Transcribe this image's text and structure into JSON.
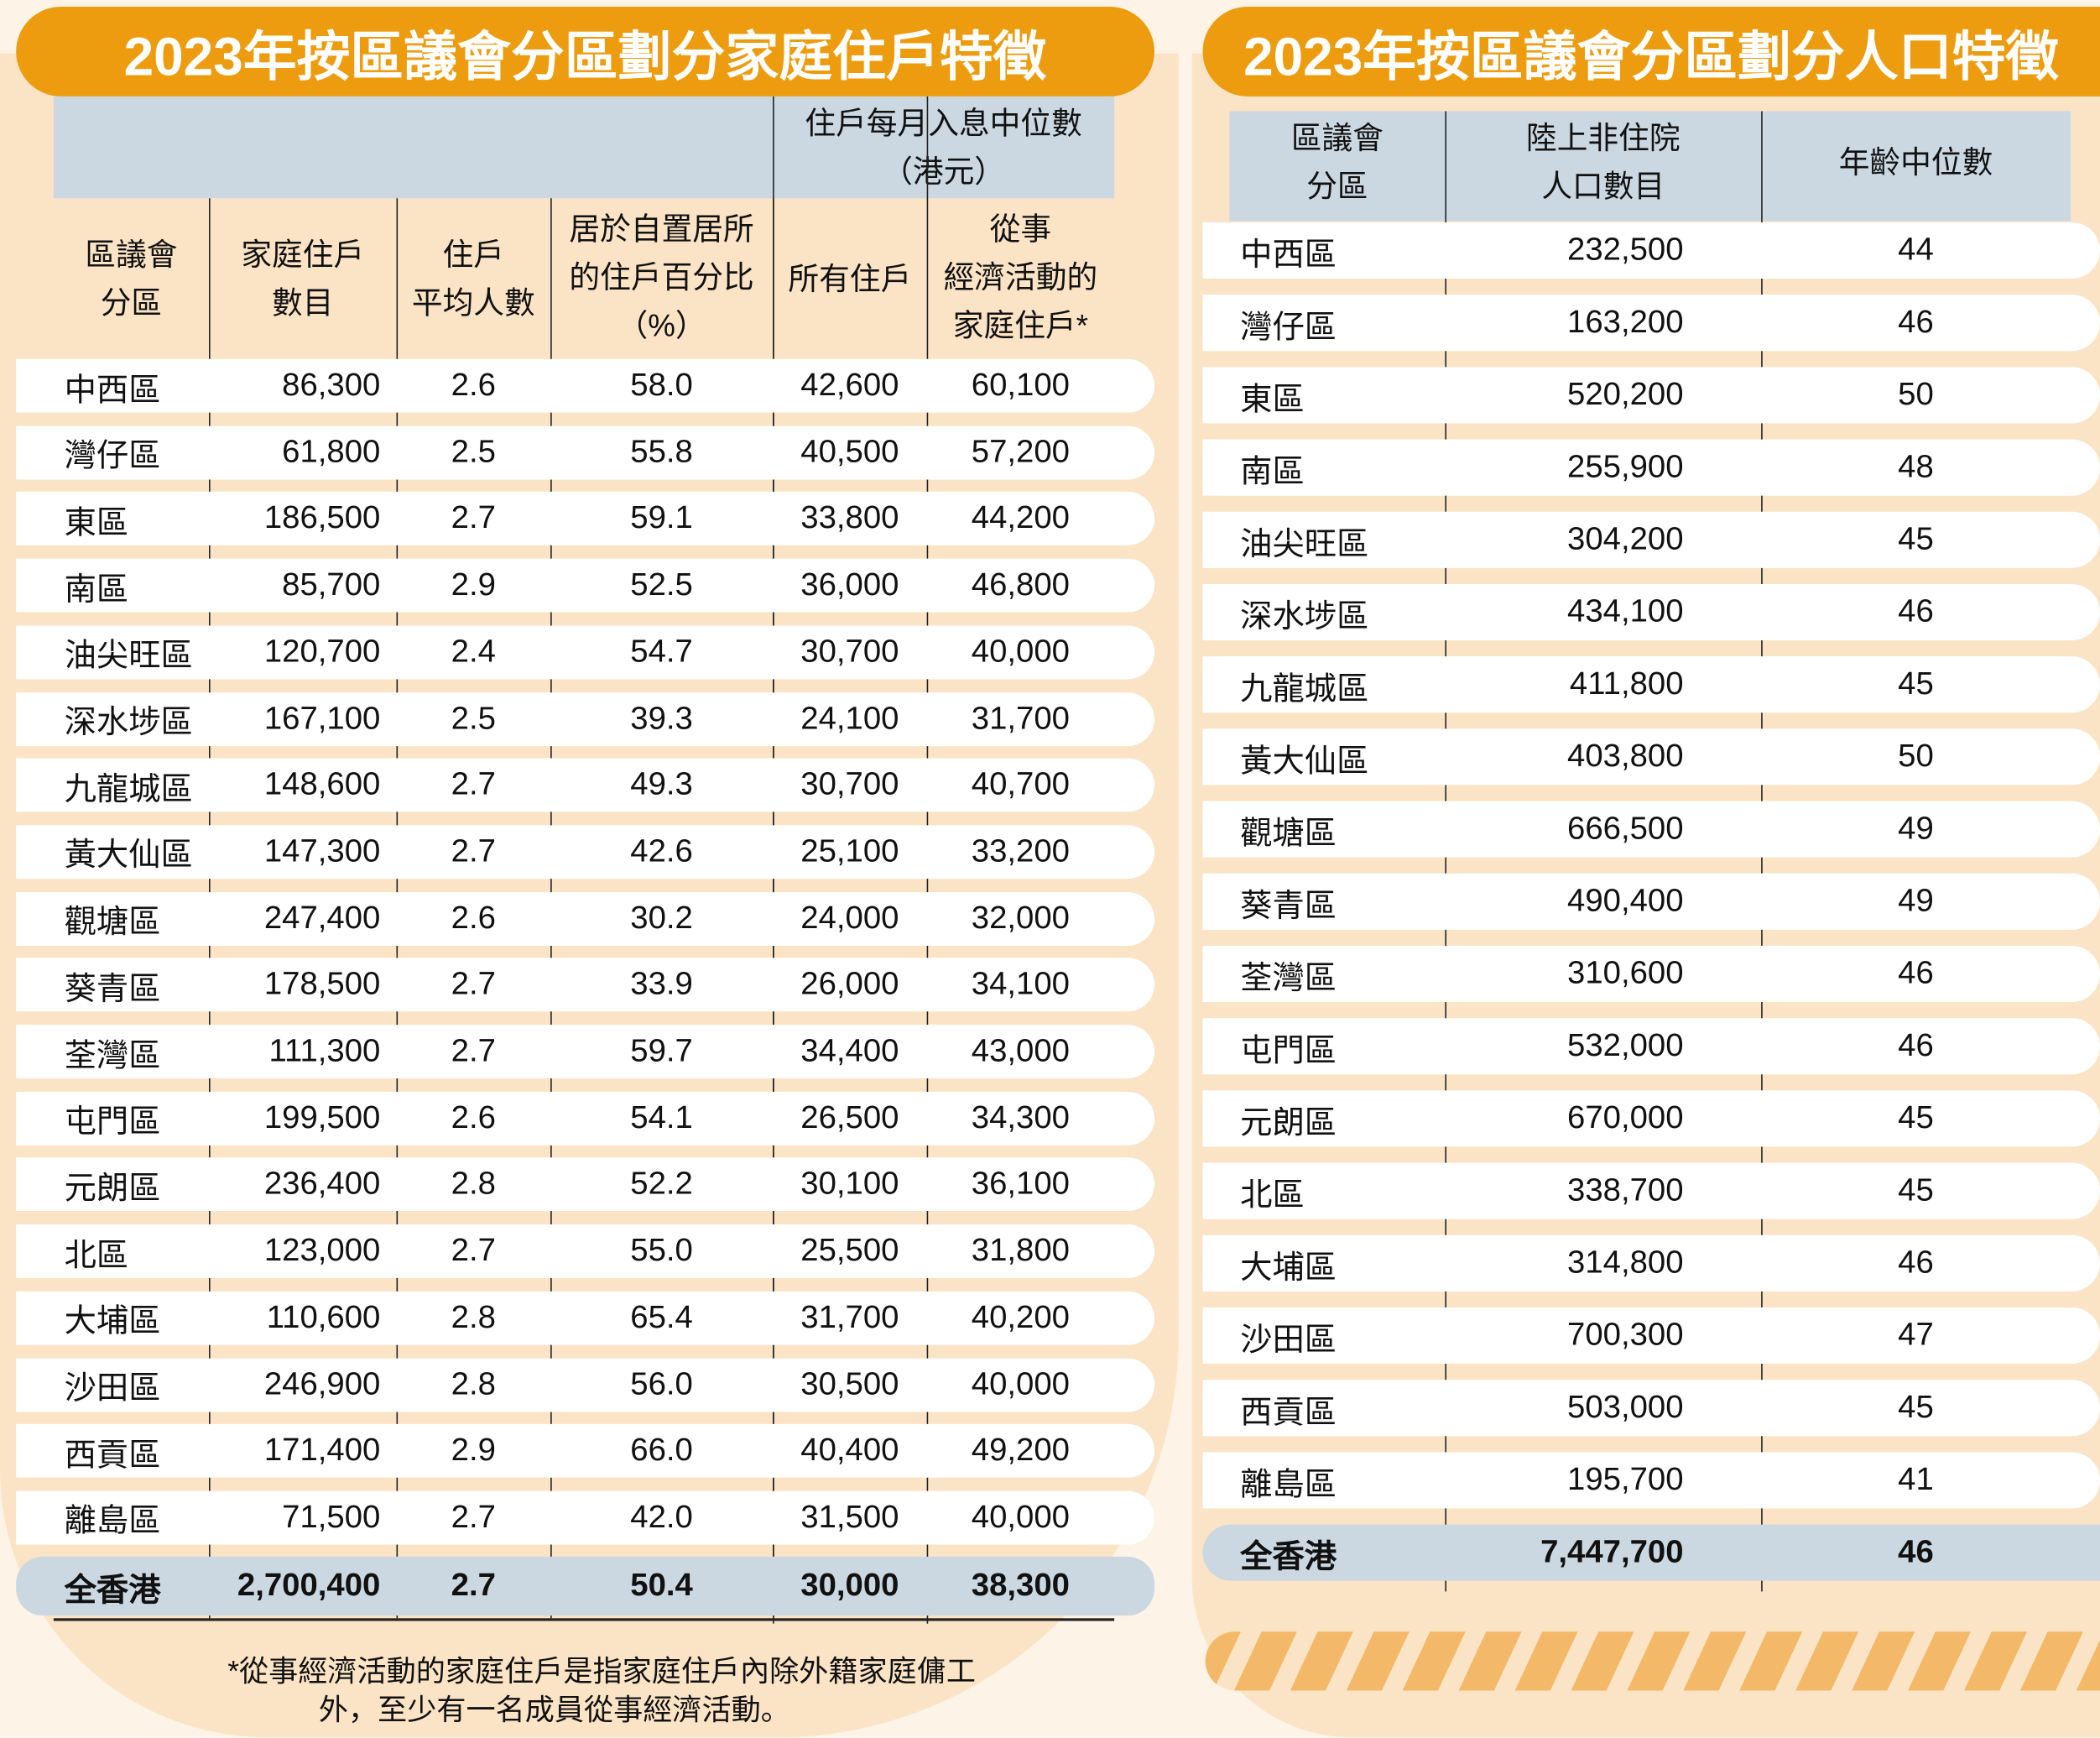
{
  "household": {
    "title": "2023年按區議會分區劃分家庭住戶特徵",
    "group_header": "住戶每月入息中位數",
    "group_unit": "（港元）",
    "columns": [
      "區議會\n分區",
      "家庭住戶\n數目",
      "住戶\n平均人數",
      "居於自置居所\n的住戶百分比\n（%）",
      "所有住戶",
      "從事\n經濟活動的\n家庭住戶*"
    ],
    "rows": [
      [
        "中西區",
        "86,300",
        "2.6",
        "58.0",
        "42,600",
        "60,100"
      ],
      [
        "灣仔區",
        "61,800",
        "2.5",
        "55.8",
        "40,500",
        "57,200"
      ],
      [
        "東區",
        "186,500",
        "2.7",
        "59.1",
        "33,800",
        "44,200"
      ],
      [
        "南區",
        "85,700",
        "2.9",
        "52.5",
        "36,000",
        "46,800"
      ],
      [
        "油尖旺區",
        "120,700",
        "2.4",
        "54.7",
        "30,700",
        "40,000"
      ],
      [
        "深水埗區",
        "167,100",
        "2.5",
        "39.3",
        "24,100",
        "31,700"
      ],
      [
        "九龍城區",
        "148,600",
        "2.7",
        "49.3",
        "30,700",
        "40,700"
      ],
      [
        "黃大仙區",
        "147,300",
        "2.7",
        "42.6",
        "25,100",
        "33,200"
      ],
      [
        "觀塘區",
        "247,400",
        "2.6",
        "30.2",
        "24,000",
        "32,000"
      ],
      [
        "葵青區",
        "178,500",
        "2.7",
        "33.9",
        "26,000",
        "34,100"
      ],
      [
        "荃灣區",
        "111,300",
        "2.7",
        "59.7",
        "34,400",
        "43,000"
      ],
      [
        "屯門區",
        "199,500",
        "2.6",
        "54.1",
        "26,500",
        "34,300"
      ],
      [
        "元朗區",
        "236,400",
        "2.8",
        "52.2",
        "30,100",
        "36,100"
      ],
      [
        "北區",
        "123,000",
        "2.7",
        "55.0",
        "25,500",
        "31,800"
      ],
      [
        "大埔區",
        "110,600",
        "2.8",
        "65.4",
        "31,700",
        "40,200"
      ],
      [
        "沙田區",
        "246,900",
        "2.8",
        "56.0",
        "30,500",
        "40,000"
      ],
      [
        "西貢區",
        "171,400",
        "2.9",
        "66.0",
        "40,400",
        "49,200"
      ],
      [
        "離島區",
        "71,500",
        "2.7",
        "42.0",
        "31,500",
        "40,000"
      ]
    ],
    "total": [
      "全香港",
      "2,700,400",
      "2.7",
      "50.4",
      "30,000",
      "38,300"
    ],
    "footnote_1": "*從事經濟活動的家庭住戶是指家庭住戶內除外籍家庭傭工",
    "footnote_2": "外，至少有一名成員從事經濟活動。"
  },
  "population": {
    "title": "2023年按區議會分區劃分人口特徵",
    "columns": [
      "區議會\n分區",
      "陸上非住院\n人口數目",
      "年齡中位數"
    ],
    "rows": [
      [
        "中西區",
        "232,500",
        "44"
      ],
      [
        "灣仔區",
        "163,200",
        "46"
      ],
      [
        "東區",
        "520,200",
        "50"
      ],
      [
        "南區",
        "255,900",
        "48"
      ],
      [
        "油尖旺區",
        "304,200",
        "45"
      ],
      [
        "深水埗區",
        "434,100",
        "46"
      ],
      [
        "九龍城區",
        "411,800",
        "45"
      ],
      [
        "黃大仙區",
        "403,800",
        "50"
      ],
      [
        "觀塘區",
        "666,500",
        "49"
      ],
      [
        "葵青區",
        "490,400",
        "49"
      ],
      [
        "荃灣區",
        "310,600",
        "46"
      ],
      [
        "屯門區",
        "532,000",
        "46"
      ],
      [
        "元朗區",
        "670,000",
        "45"
      ],
      [
        "北區",
        "338,700",
        "45"
      ],
      [
        "大埔區",
        "314,800",
        "46"
      ],
      [
        "沙田區",
        "700,300",
        "47"
      ],
      [
        "西貢區",
        "503,000",
        "45"
      ],
      [
        "離島區",
        "195,700",
        "41"
      ]
    ],
    "total": [
      "全香港",
      "7,447,700",
      "46"
    ]
  },
  "colors": {
    "title_bg": "#ec9c0e",
    "header_bg": "#cbd8e2",
    "page_bg": "#fbe4c6"
  }
}
